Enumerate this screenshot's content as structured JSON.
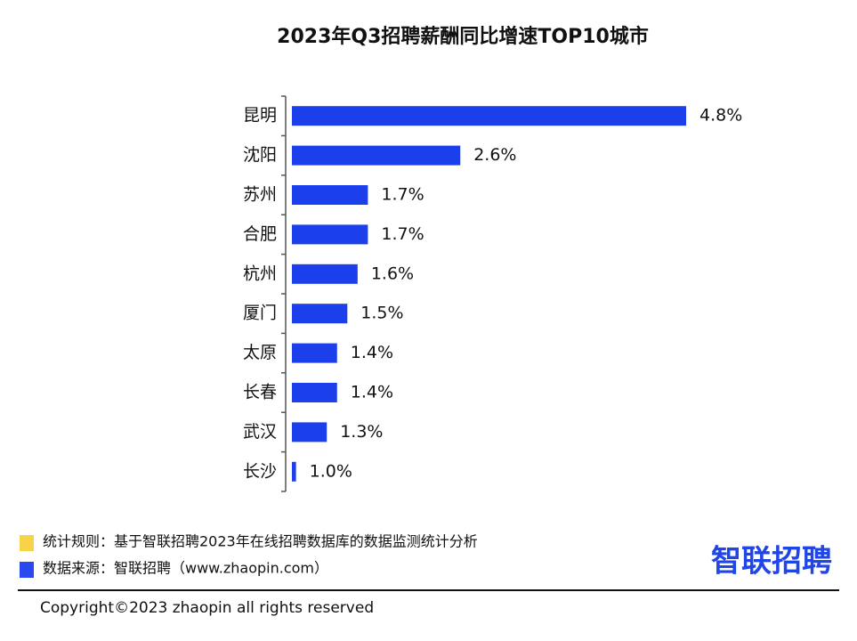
{
  "chart_data": {
    "type": "hbar",
    "title": "2023年Q3招聘薪酬同比增速TOP10城市",
    "categories": [
      "昆明",
      "沈阳",
      "苏州",
      "合肥",
      "杭州",
      "厦门",
      "太原",
      "长春",
      "武汉",
      "长沙"
    ],
    "values": [
      4.8,
      2.6,
      1.7,
      1.7,
      1.6,
      1.5,
      1.4,
      1.4,
      1.3,
      1.0
    ],
    "value_labels": [
      "4.8%",
      "2.6%",
      "1.7%",
      "1.7%",
      "1.6%",
      "1.5%",
      "1.4%",
      "1.4%",
      "1.3%",
      "1.0%"
    ],
    "color": "#1b3fea",
    "xlim": [
      0.96,
      4.8
    ]
  },
  "notes": [
    {
      "text": "统计规则：基于智联招聘2023年在线招聘数据库的数据监测统计分析",
      "color": "#f7d34a"
    },
    {
      "text": "数据来源：智联招聘（www.zhaopin.com）",
      "color": "#2a48f0"
    }
  ],
  "logo": "智联招聘",
  "copyright": "Copyright©2023 zhaopin all rights reserved"
}
